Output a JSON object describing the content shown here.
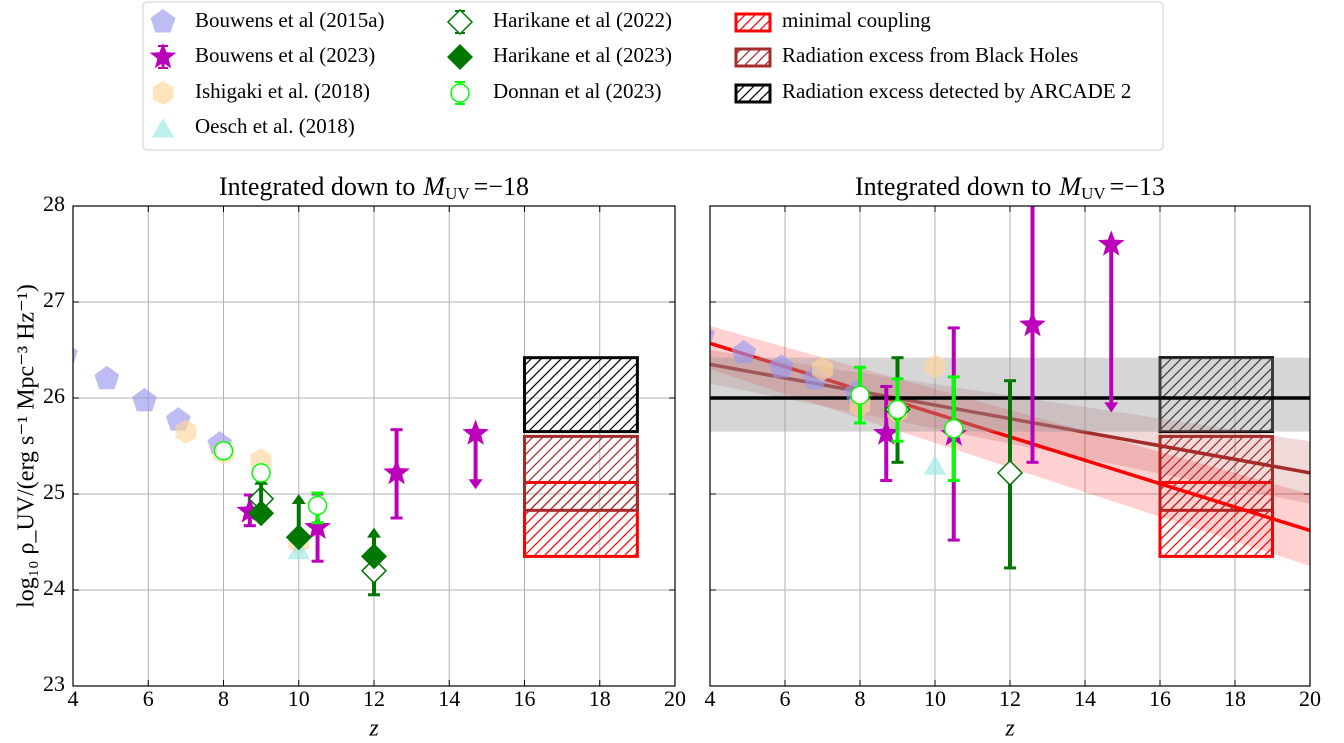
{
  "chart_data": [
    {
      "type": "scatter",
      "title": {
        "text": "Integrated down to",
        "symbol": "M",
        "subscript": "UV",
        "equals": "=−18"
      },
      "xlabel": "z",
      "ylabel": "log₁₀ ρ_UV/(erg s⁻¹ Mpc⁻³ Hz⁻¹)",
      "xlim": [
        4,
        20
      ],
      "ylim": [
        23,
        28
      ],
      "xticks": [
        4,
        6,
        8,
        10,
        12,
        14,
        16,
        18,
        20
      ],
      "yticks": [
        23,
        24,
        25,
        26,
        27,
        28
      ],
      "grid": true,
      "legend": "top",
      "series": [
        {
          "name": "Bouwens et al (2015a)",
          "color": "#9999ee",
          "marker": "pentagon",
          "x": [
            3.8,
            4.9,
            5.9,
            6.8,
            7.9
          ],
          "values": [
            26.45,
            26.2,
            25.97,
            25.77,
            25.52
          ]
        },
        {
          "name": "Bouwens et al (2023)",
          "color": "#bb00bb",
          "marker": "star",
          "x": [
            8.7,
            10.5,
            12.6,
            14.7
          ],
          "values": [
            24.82,
            24.65,
            25.22,
            25.63
          ],
          "err_minus": [
            0.15,
            0.35,
            0.47,
            null
          ],
          "err_plus": [
            0.17,
            0.35,
            0.45,
            null
          ],
          "limit_to": [
            null,
            null,
            null,
            25.05
          ]
        },
        {
          "name": "Ishigaki et al. (2018)",
          "color": "#ffd699",
          "marker": "hexagon",
          "x": [
            7,
            8,
            9,
            10
          ],
          "values": [
            25.65,
            25.43,
            25.35,
            24.5
          ]
        },
        {
          "name": "Oesch et al. (2018)",
          "color": "#99e6e6",
          "marker": "triangle",
          "x": [
            10
          ],
          "values": [
            24.42
          ]
        },
        {
          "name": "Harikane et al (2022)",
          "color": "#007700",
          "marker": "diamond-open",
          "x": [
            9,
            12
          ],
          "values": [
            24.95,
            24.2
          ],
          "err_minus": [
            null,
            0.25
          ],
          "err_plus": [
            null,
            0
          ]
        },
        {
          "name": "Harikane et al (2023)",
          "color": "#007700",
          "marker": "diamond",
          "x": [
            9,
            10,
            12
          ],
          "values": [
            24.8,
            24.55,
            24.35
          ],
          "limit_to": [
            25.2,
            25.0,
            24.65
          ]
        },
        {
          "name": "Donnan et al (2023)",
          "color": "#00ff00",
          "marker": "circle-open",
          "x": [
            8,
            9,
            10.5
          ],
          "values": [
            25.45,
            25.22,
            24.88
          ],
          "err_minus": [
            0.05,
            0.05,
            0.18
          ],
          "err_plus": [
            0.05,
            0.05,
            0.13
          ]
        },
        {
          "name": "minimal coupling",
          "color": "#ff0000",
          "marker": "box",
          "x": [
            16,
            19
          ],
          "values": [
            24.35,
            25.12
          ]
        },
        {
          "name": "Radiation excess from Black Holes",
          "color": "#a52a2a",
          "marker": "box",
          "x": [
            16,
            19
          ],
          "values": [
            24.83,
            25.6
          ]
        },
        {
          "name": "Radiation excess detected by ARCADE 2",
          "color": "#000000",
          "marker": "box",
          "x": [
            16,
            19
          ],
          "values": [
            25.65,
            26.42
          ]
        }
      ]
    },
    {
      "type": "scatter",
      "title": {
        "text": "Integrated down to",
        "symbol": "M",
        "subscript": "UV",
        "equals": "=−13"
      },
      "xlabel": "z",
      "xlim": [
        4,
        20
      ],
      "ylim": [
        23,
        28
      ],
      "xticks": [
        4,
        6,
        8,
        10,
        12,
        14,
        16,
        18,
        20
      ],
      "yticks": [
        23,
        24,
        25,
        26,
        27,
        28
      ],
      "show_ytick_labels": false,
      "grid": true,
      "series": [
        {
          "color": "#ff0000",
          "marker": "line",
          "x": [
            4,
            20
          ],
          "values": [
            26.57,
            24.62
          ],
          "band_low": [
            26.3,
            24.25
          ],
          "band_high": [
            26.75,
            25.0
          ]
        },
        {
          "color": "#a52a2a",
          "marker": "line",
          "x": [
            4,
            20
          ],
          "values": [
            26.35,
            25.22
          ],
          "band_low": [
            26.15,
            24.9
          ],
          "band_high": [
            26.5,
            25.55
          ]
        },
        {
          "color": "#000000",
          "marker": "line",
          "x": [
            4,
            20
          ],
          "values": [
            26.0,
            26.0
          ],
          "band_low": [
            25.65,
            25.65
          ],
          "band_high": [
            26.42,
            26.42
          ]
        },
        {
          "color": "#9999ee",
          "marker": "pentagon",
          "x": [
            3.8,
            4.9,
            5.9,
            6.8,
            7.9
          ],
          "values": [
            26.65,
            26.47,
            26.32,
            26.2,
            26.05
          ]
        },
        {
          "color": "#bb00bb",
          "marker": "star",
          "x": [
            8.7,
            10.5,
            12.6,
            14.7
          ],
          "values": [
            25.63,
            25.62,
            26.76,
            27.6
          ],
          "err_minus": [
            0.49,
            1.1,
            1.43,
            null
          ],
          "err_plus": [
            0.49,
            1.11,
            1.3,
            null
          ],
          "limit_to": [
            null,
            null,
            null,
            25.85
          ]
        },
        {
          "color": "#ffd699",
          "marker": "hexagon",
          "x": [
            7,
            8,
            9,
            10
          ],
          "values": [
            26.3,
            25.93,
            25.86,
            26.33
          ]
        },
        {
          "color": "#99e6e6",
          "marker": "triangle",
          "x": [
            10
          ],
          "values": [
            25.3
          ]
        },
        {
          "color": "#007700",
          "marker": "diamond",
          "x": [
            9
          ],
          "values": [
            25.88
          ],
          "err_minus": [
            0.55
          ],
          "err_plus": [
            0.54
          ]
        },
        {
          "color": "#007700",
          "marker": "diamond-open",
          "x": [
            9,
            12
          ],
          "values": [
            25.88,
            25.22
          ],
          "err_minus": [
            null,
            0.99
          ],
          "err_plus": [
            null,
            0.96
          ]
        },
        {
          "color": "#00ff00",
          "marker": "circle-open",
          "x": [
            8,
            9,
            10.5
          ],
          "values": [
            26.03,
            25.88,
            25.68
          ],
          "err_minus": [
            0.29,
            0.33,
            0.54
          ],
          "err_plus": [
            0.29,
            0.32,
            0.54
          ]
        },
        {
          "color": "#ff0000",
          "marker": "box",
          "x": [
            16,
            19
          ],
          "values": [
            24.35,
            25.12
          ]
        },
        {
          "color": "#a52a2a",
          "marker": "box",
          "x": [
            16,
            19
          ],
          "values": [
            24.83,
            25.6
          ]
        },
        {
          "color": "#000000",
          "marker": "box",
          "x": [
            16,
            19
          ],
          "values": [
            25.65,
            26.42
          ]
        }
      ]
    }
  ]
}
